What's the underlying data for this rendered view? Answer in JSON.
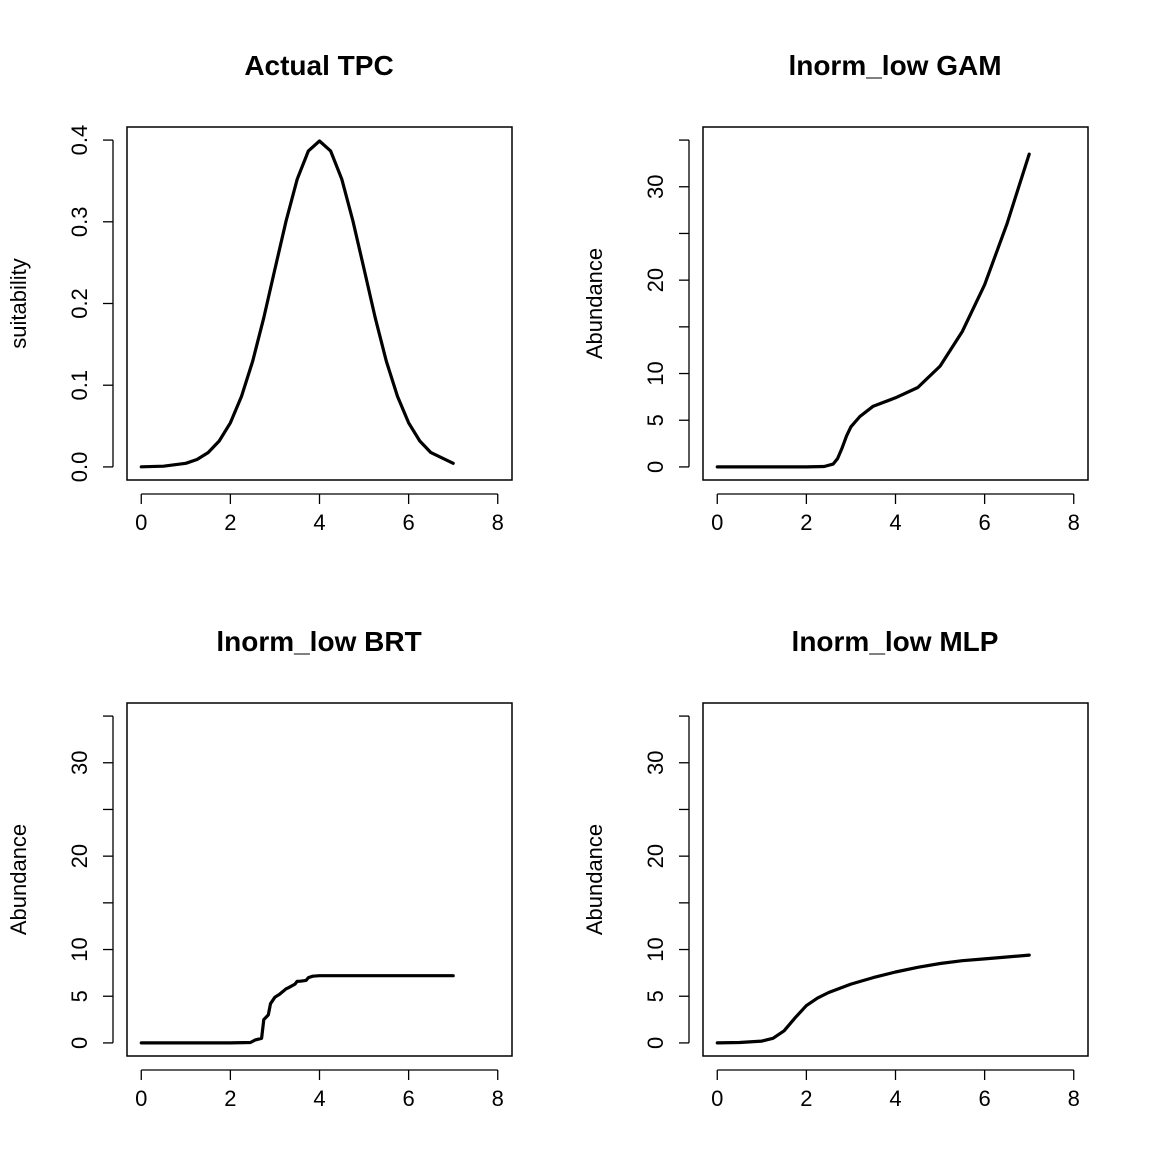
{
  "chart_data": [
    {
      "type": "line",
      "title": "Actual TPC",
      "xlabel": "",
      "ylabel": "suitability",
      "xlim": [
        0,
        8
      ],
      "ylim": [
        0,
        0.4
      ],
      "xticks": [
        0,
        2,
        4,
        6,
        8
      ],
      "xtick_labels": [
        "0",
        "2",
        "4",
        "6",
        "8"
      ],
      "yticks": [
        0,
        0.1,
        0.2,
        0.3,
        0.4
      ],
      "ytick_labels": [
        "0.0",
        "0.1",
        "0.2",
        "0.3",
        "0.4"
      ],
      "grid": false,
      "color": "#000000",
      "series": [
        {
          "x": [
            0,
            0.5,
            1,
            1.25,
            1.5,
            1.75,
            2,
            2.25,
            2.5,
            2.75,
            3,
            3.25,
            3.5,
            3.75,
            4,
            4.25,
            4.5,
            4.75,
            5,
            5.25,
            5.5,
            5.75,
            6,
            6.25,
            6.5,
            7
          ],
          "y": [
            0.0001,
            0.0009,
            0.0044,
            0.0091,
            0.0175,
            0.0317,
            0.054,
            0.0863,
            0.1295,
            0.1826,
            0.242,
            0.3011,
            0.3521,
            0.3867,
            0.3989,
            0.3867,
            0.3521,
            0.3011,
            0.242,
            0.1826,
            0.1295,
            0.0863,
            0.054,
            0.0317,
            0.0175,
            0.0044
          ]
        }
      ]
    },
    {
      "type": "line",
      "title": "lnorm_low GAM",
      "xlabel": "",
      "ylabel": "Abundance",
      "xlim": [
        0,
        8
      ],
      "ylim": [
        0,
        35
      ],
      "xticks": [
        0,
        2,
        4,
        6,
        8
      ],
      "xtick_labels": [
        "0",
        "2",
        "4",
        "6",
        "8"
      ],
      "yticks": [
        0,
        5,
        10,
        15,
        20,
        25,
        30,
        35
      ],
      "ytick_labels": [
        "0",
        "5",
        "10",
        "",
        "20",
        "",
        "30",
        ""
      ],
      "grid": false,
      "color": "#000000",
      "series": [
        {
          "x": [
            0,
            1,
            2,
            2.4,
            2.6,
            2.7,
            2.8,
            2.9,
            3,
            3.2,
            3.5,
            4,
            4.5,
            5,
            5.5,
            6,
            6.5,
            7
          ],
          "y": [
            0,
            0,
            0,
            0.05,
            0.3,
            0.9,
            2.0,
            3.3,
            4.3,
            5.4,
            6.5,
            7.4,
            8.5,
            10.8,
            14.5,
            19.5,
            26.0,
            33.5
          ]
        }
      ]
    },
    {
      "type": "line",
      "title": "lnorm_low BRT",
      "xlabel": "",
      "ylabel": "Abundance",
      "xlim": [
        0,
        8
      ],
      "ylim": [
        0,
        35
      ],
      "xticks": [
        0,
        2,
        4,
        6,
        8
      ],
      "xtick_labels": [
        "0",
        "2",
        "4",
        "6",
        "8"
      ],
      "yticks": [
        0,
        5,
        10,
        15,
        20,
        25,
        30,
        35
      ],
      "ytick_labels": [
        "0",
        "5",
        "10",
        "",
        "20",
        "",
        "30",
        ""
      ],
      "grid": false,
      "color": "#000000",
      "series": [
        {
          "x": [
            0,
            1,
            2,
            2.45,
            2.55,
            2.7,
            2.75,
            2.85,
            2.9,
            3.0,
            3.1,
            3.25,
            3.3,
            3.45,
            3.5,
            3.55,
            3.7,
            3.75,
            3.85,
            4.0,
            5,
            6,
            7
          ],
          "y": [
            0,
            0,
            0,
            0.05,
            0.3,
            0.5,
            2.5,
            3.0,
            4.2,
            4.9,
            5.2,
            5.8,
            5.9,
            6.3,
            6.6,
            6.6,
            6.7,
            7.0,
            7.15,
            7.2,
            7.2,
            7.2,
            7.2
          ]
        }
      ]
    },
    {
      "type": "line",
      "title": "lnorm_low MLP",
      "xlabel": "",
      "ylabel": "Abundance",
      "xlim": [
        0,
        8
      ],
      "ylim": [
        0,
        35
      ],
      "xticks": [
        0,
        2,
        4,
        6,
        8
      ],
      "xtick_labels": [
        "0",
        "2",
        "4",
        "6",
        "8"
      ],
      "yticks": [
        0,
        5,
        10,
        15,
        20,
        25,
        30,
        35
      ],
      "ytick_labels": [
        "0",
        "5",
        "10",
        "",
        "20",
        "",
        "30",
        ""
      ],
      "grid": false,
      "color": "#000000",
      "series": [
        {
          "x": [
            0,
            0.5,
            1,
            1.25,
            1.5,
            1.75,
            2,
            2.25,
            2.5,
            3,
            3.5,
            4,
            4.5,
            5,
            5.5,
            6,
            6.5,
            7
          ],
          "y": [
            0,
            0.05,
            0.2,
            0.5,
            1.3,
            2.7,
            4.0,
            4.8,
            5.4,
            6.3,
            7.0,
            7.6,
            8.1,
            8.5,
            8.8,
            9.0,
            9.2,
            9.4
          ]
        }
      ]
    }
  ]
}
